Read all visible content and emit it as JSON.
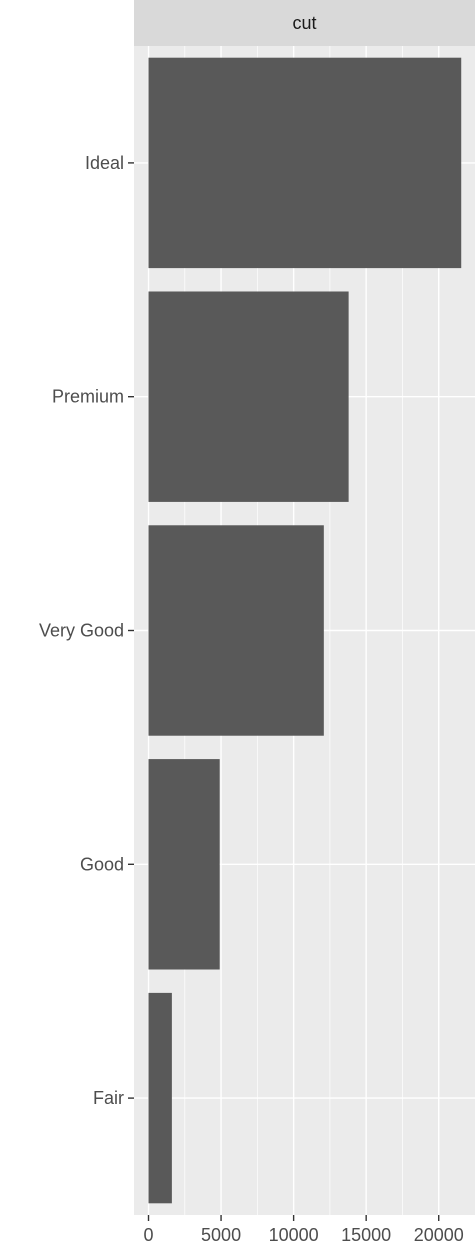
{
  "chart_data": {
    "type": "bar",
    "orientation": "horizontal",
    "facet_label": "cut",
    "categories": [
      "Ideal",
      "Premium",
      "Very Good",
      "Good",
      "Fair"
    ],
    "values": [
      21551,
      13791,
      12082,
      4906,
      1610
    ],
    "xlim": [
      -1000,
      22500
    ],
    "x_ticks": [
      0,
      5000,
      10000,
      15000,
      20000
    ],
    "x_tick_labels": [
      "0",
      "5000",
      "10000",
      "15000",
      "20000"
    ],
    "grid": true,
    "bar_color": "#595959",
    "panel_background": "#ebebeb",
    "strip_background": "#d9d9d9"
  }
}
